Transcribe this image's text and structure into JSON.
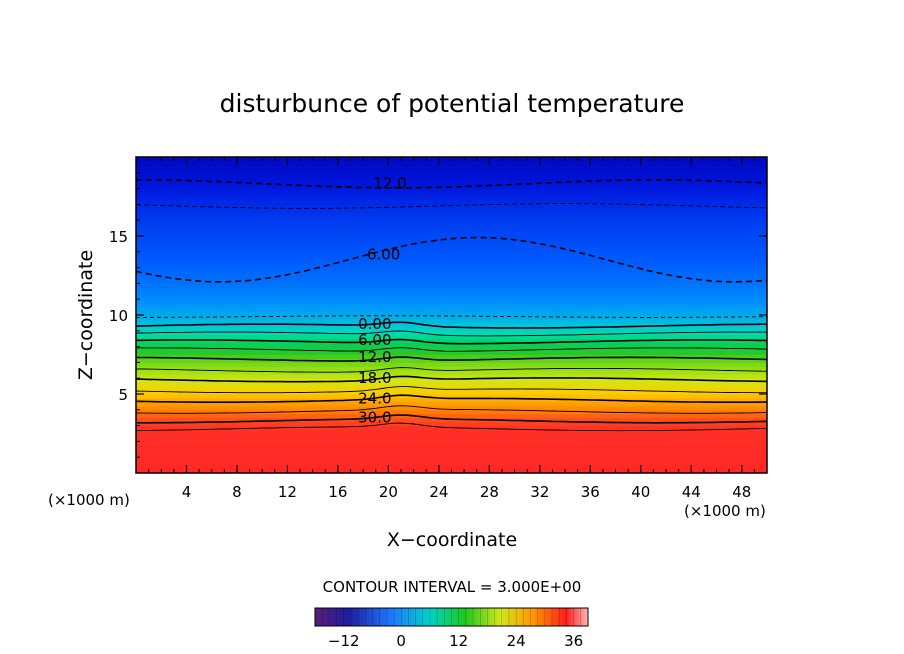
{
  "chart_data": {
    "type": "heatmap",
    "title": "disturbunce of potential temperature",
    "xlabel": "X−coordinate",
    "ylabel": "Z−coordinate",
    "x_unit_left": "(×1000 m)",
    "x_unit_right": "(×1000 m)",
    "xlim": [
      0,
      50
    ],
    "ylim": [
      0,
      20
    ],
    "x_ticks": [
      4,
      8,
      12,
      16,
      20,
      24,
      28,
      32,
      36,
      40,
      44,
      48
    ],
    "y_ticks": [
      5,
      10,
      15
    ],
    "contour_interval_text": "CONTOUR INTERVAL = 3.000E+00",
    "colorbar": {
      "range": [
        -18,
        39
      ],
      "ticks": [
        -12,
        0,
        12,
        24,
        36
      ]
    },
    "contour_labels": [
      {
        "text": "12.0",
        "x": 18.8,
        "y": 18.2,
        "dashed": true
      },
      {
        "text": "6.00",
        "x": 18.3,
        "y": 13.7,
        "dashed": true
      },
      {
        "text": "0.00",
        "x": 17.6,
        "y": 9.3,
        "dashed": false
      },
      {
        "text": "6.00",
        "x": 17.6,
        "y": 8.3,
        "dashed": false
      },
      {
        "text": "12.0",
        "x": 17.6,
        "y": 7.2,
        "dashed": false
      },
      {
        "text": "18.0",
        "x": 17.6,
        "y": 5.9,
        "dashed": false
      },
      {
        "text": "24.0",
        "x": 17.6,
        "y": 4.6,
        "dashed": false
      },
      {
        "text": "30.0",
        "x": 17.6,
        "y": 3.4,
        "dashed": false
      }
    ],
    "values_description_levels": [
      -12,
      -6,
      0,
      6,
      12,
      18,
      24,
      30
    ],
    "colors": {
      "low": "#0000c8",
      "mid": "#00c8b4",
      "high": "#ff2828"
    }
  }
}
